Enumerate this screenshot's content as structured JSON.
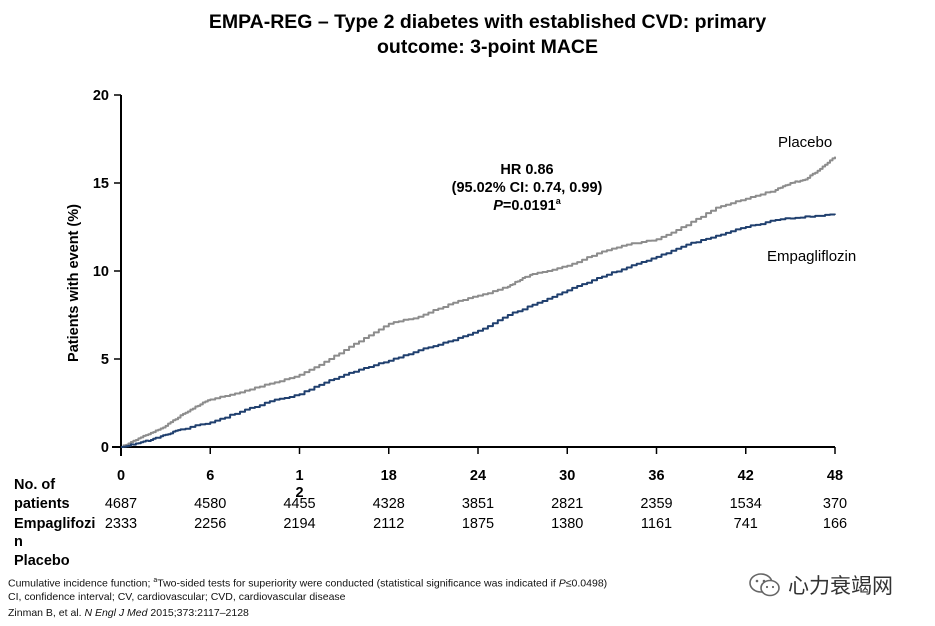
{
  "title_line1": "EMPA-REG – Type 2 diabetes with established CVD: primary",
  "title_line2": "outcome: 3-point MACE",
  "chart_data": {
    "type": "line",
    "title": "EMPA-REG – Type 2 diabetes with established CVD: primary outcome: 3-point MACE",
    "xlabel": "",
    "ylabel": "Patients with event (%)",
    "xlim": [
      0,
      48
    ],
    "ylim": [
      0,
      20
    ],
    "xticks": [
      0,
      6,
      12,
      18,
      24,
      30,
      36,
      42,
      48
    ],
    "xtick_labels": [
      "0",
      "6",
      "1\n2",
      "18",
      "24",
      "30",
      "36",
      "42",
      "48"
    ],
    "yticks": [
      0,
      5,
      10,
      15,
      20
    ],
    "ytick_labels": [
      "0",
      "5",
      "10",
      "15",
      "20"
    ],
    "grid": false,
    "series": [
      {
        "name": "Placebo",
        "color": "#8c8c8c",
        "x": [
          0,
          1,
          2,
          3,
          4,
          5,
          6,
          8,
          10,
          12,
          14,
          16,
          18,
          20,
          22,
          24,
          26,
          27,
          28,
          30,
          32,
          34,
          36,
          38,
          40,
          42,
          44,
          45,
          46,
          47,
          48
        ],
        "y": [
          0,
          0.4,
          0.8,
          1.2,
          1.8,
          2.3,
          2.7,
          3.1,
          3.6,
          4.1,
          5.0,
          6.0,
          7.0,
          7.4,
          8.1,
          8.6,
          9.1,
          9.6,
          9.9,
          10.3,
          11.0,
          11.5,
          11.8,
          12.6,
          13.6,
          14.1,
          14.6,
          15.0,
          15.2,
          15.8,
          16.5
        ]
      },
      {
        "name": "Empagliflozin",
        "color": "#1f3f6e",
        "x": [
          0,
          1,
          2,
          3,
          4,
          6,
          8,
          10,
          12,
          14,
          16,
          18,
          20,
          22,
          24,
          26,
          28,
          30,
          32,
          34,
          36,
          38,
          40,
          42,
          44,
          46,
          48
        ],
        "y": [
          0,
          0.2,
          0.4,
          0.7,
          1.0,
          1.4,
          2.0,
          2.6,
          3.0,
          3.8,
          4.4,
          4.9,
          5.5,
          6.0,
          6.6,
          7.5,
          8.2,
          8.9,
          9.6,
          10.2,
          10.8,
          11.5,
          12.0,
          12.5,
          12.9,
          13.1,
          13.2
        ]
      }
    ],
    "legend": [
      "Placebo",
      "Empagliflozin"
    ],
    "annotation": {
      "line1": "HR 0.86",
      "line2": "(95.02% CI: 0.74, 0.99)",
      "line3_italic": "P",
      "line3_value": "=0.0191",
      "line3_sup": "a"
    }
  },
  "risk_table": {
    "header_line1": "No. of",
    "header_line2": "patients",
    "rows": [
      {
        "label": "Empaglifozi",
        "label_wrap": "n",
        "values": [
          "4687",
          "4580",
          "4455",
          "4328",
          "3851",
          "2821",
          "2359",
          "1534",
          "370"
        ]
      },
      {
        "label": "Placebo",
        "values": [
          "2333",
          "2256",
          "2194",
          "2112",
          "1875",
          "1380",
          "1161",
          "741",
          "166"
        ]
      }
    ]
  },
  "footnotes": {
    "line1_prefix": "Cumulative incidence function; ",
    "line1_sup": "a",
    "line1_mid": "Two-sided tests for superiority were conducted (statistical  significance was indicated if ",
    "line1_italic": "P",
    "line1_suffix": "≤0.0498)",
    "line2": "CI, confidence interval; CV, cardiovascular; CVD,  cardiovascular disease",
    "line3_prefix": "Zinman B, et al. ",
    "line3_italic": "N Engl J Med",
    "line3_suffix": " 2015;373:2117–2128"
  },
  "watermark": {
    "text": "心力衰竭网",
    "icon": "wechat-icon"
  }
}
